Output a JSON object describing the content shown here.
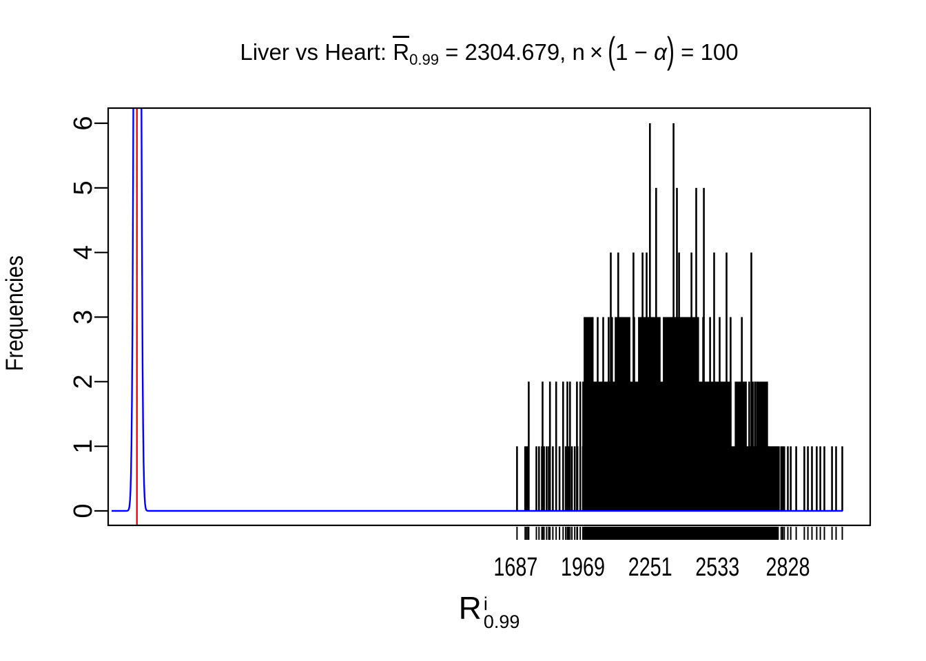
{
  "title": {
    "part1": "Liver vs Heart: ",
    "rbar": "R",
    "rbar_sub": "0.99",
    "part2": " = 2304.679, n",
    "times": "×",
    "lparen": "(",
    "expr1": "1 − ",
    "alpha": "α",
    "rparen": ")",
    "part3": " = 100"
  },
  "y_axis": {
    "title": "Frequencies",
    "tick_labels": [
      "0",
      "1",
      "2",
      "3",
      "4",
      "5",
      "6"
    ]
  },
  "x_axis": {
    "title_base": "R",
    "title_sup": "i",
    "title_sub": "0.99",
    "tick_labels": [
      "1687",
      "1969",
      "2251",
      "2533",
      "2828"
    ],
    "tick_values": [
      1687,
      1969,
      2251,
      2533,
      2828
    ]
  },
  "colors": {
    "histogram": "#000000",
    "density_curve": "#0000ff",
    "reference_line": "#ff0000",
    "background": "#ffffff",
    "text": "#000000"
  },
  "chart_data": {
    "type": "bar",
    "subtype": "spike-histogram-with-density",
    "title": "Liver vs Heart: Rbar_0.99 = 2304.679, n x (1 - alpha) = 100",
    "xlabel": "R^i_0.99",
    "ylabel": "Frequencies",
    "xlim": [
      -20.5,
      3173
    ],
    "ylim": [
      -0.224,
      6.235
    ],
    "x_ticks": [
      1687,
      1969,
      2251,
      2533,
      2828
    ],
    "y_ticks": [
      0,
      1,
      2,
      3,
      4,
      5,
      6
    ],
    "stats": {
      "rbar_099": 2304.679,
      "n_times_one_minus_alpha": 100
    },
    "reference_vline": {
      "x": 100,
      "color": "#ff0000"
    },
    "density": {
      "color": "#0000ff",
      "center": 102,
      "sigma": 9.6,
      "amplitude": 30,
      "clipped_at_top": true,
      "line_start": -6,
      "line_end": 3058
    },
    "rug": {
      "present": true,
      "band_sample_step": 4
    },
    "spikes": [
      [
        1693,
        1
      ],
      [
        1727,
        1
      ],
      [
        1733,
        1
      ],
      [
        1739,
        1
      ],
      [
        1774,
        1
      ],
      [
        1785,
        1
      ],
      [
        1797,
        1
      ],
      [
        1806,
        1
      ],
      [
        1817,
        1
      ],
      [
        1826,
        1
      ],
      [
        1843,
        1
      ],
      [
        1871,
        1
      ],
      [
        1897,
        1
      ],
      [
        1909,
        1
      ],
      [
        1923,
        1
      ],
      [
        1935,
        1
      ],
      [
        1946,
        1
      ],
      [
        1969,
        1
      ],
      [
        1742,
        2
      ],
      [
        1800,
        2
      ],
      [
        1831,
        2
      ],
      [
        1857,
        2
      ],
      [
        1886,
        2
      ],
      [
        1904,
        2
      ],
      [
        1915,
        2
      ],
      [
        1944,
        2
      ],
      [
        1958,
        2
      ],
      [
        1970,
        2
      ],
      [
        2031,
        3
      ],
      [
        2054,
        3
      ],
      [
        2077,
        3
      ],
      [
        2091,
        3
      ],
      [
        2184,
        3
      ],
      [
        2473,
        3
      ],
      [
        2502,
        3
      ],
      [
        2542,
        3
      ],
      [
        2588,
        3
      ],
      [
        2635,
        3
      ],
      [
        2086,
        4
      ],
      [
        2117,
        4
      ],
      [
        2181,
        4
      ],
      [
        2219,
        4
      ],
      [
        2236,
        4
      ],
      [
        2372,
        4
      ],
      [
        2424,
        4
      ],
      [
        2519,
        4
      ],
      [
        2571,
        4
      ],
      [
        2675,
        4
      ],
      [
        2276,
        5
      ],
      [
        2363,
        5
      ],
      [
        2444,
        5
      ],
      [
        2476,
        5
      ],
      [
        2250,
        6
      ],
      [
        2349,
        6
      ],
      [
        2652,
        2
      ],
      [
        2666,
        2
      ],
      [
        2681,
        2
      ],
      [
        2690,
        2
      ],
      [
        2698,
        2
      ],
      [
        2800,
        1
      ],
      [
        2806,
        1
      ],
      [
        2813,
        1
      ],
      [
        2828,
        1
      ],
      [
        2840,
        1
      ],
      [
        2863,
        1
      ],
      [
        2897,
        1
      ],
      [
        2912,
        1
      ],
      [
        2929,
        1
      ],
      [
        2949,
        1
      ],
      [
        2964,
        1
      ],
      [
        2981,
        1
      ],
      [
        3013,
        1
      ],
      [
        3030,
        1
      ],
      [
        3056,
        1
      ]
    ],
    "bands": [
      [
        1976,
        2747,
        1
      ],
      [
        1976,
        2588,
        2
      ],
      [
        1976,
        2010,
        3
      ],
      [
        2106,
        2164,
        3
      ],
      [
        2204,
        2291,
        3
      ],
      [
        2308,
        2452,
        3
      ],
      [
        2609,
        2646,
        2
      ],
      [
        2704,
        2741,
        2
      ],
      [
        2747,
        2790,
        1
      ]
    ]
  }
}
